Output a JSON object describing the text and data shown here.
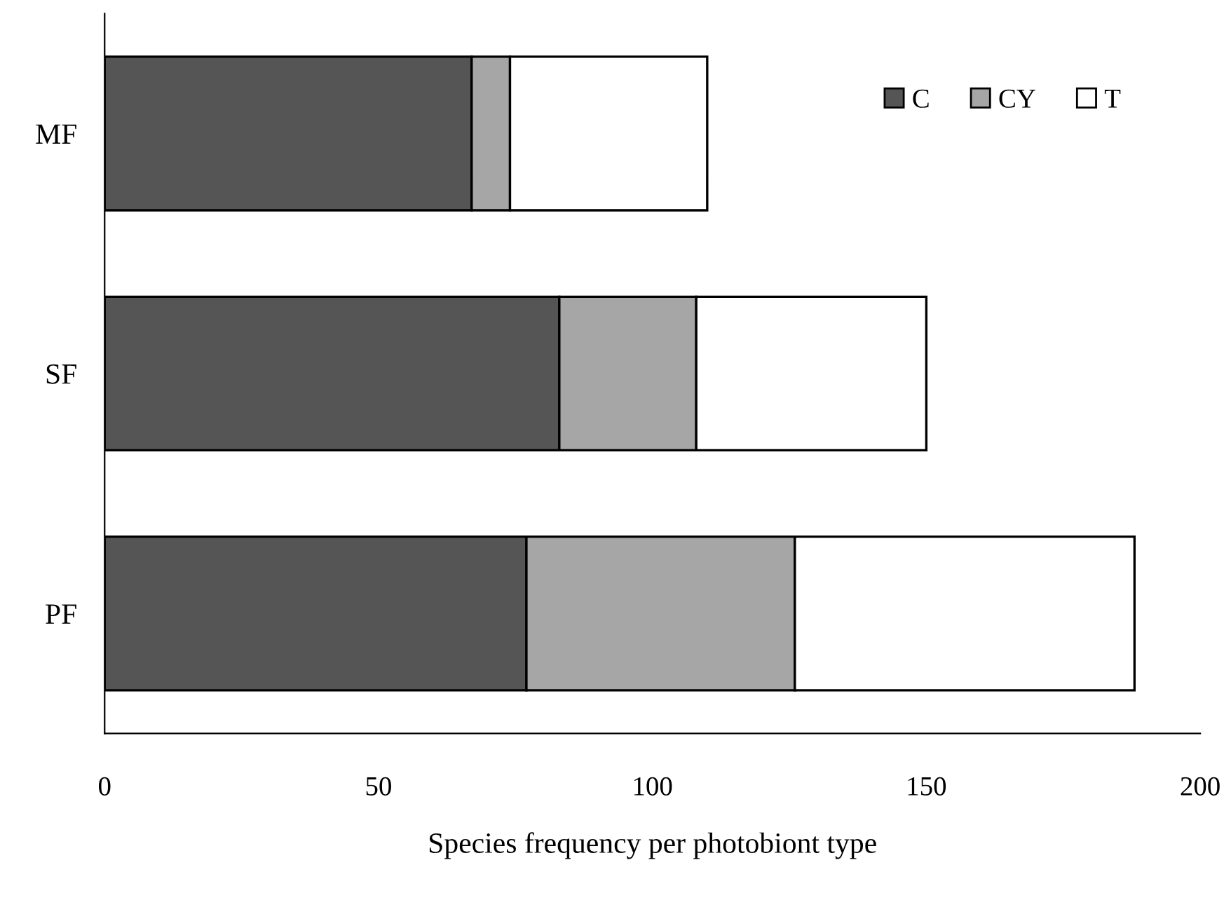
{
  "chart_data": {
    "type": "bar",
    "orientation": "horizontal",
    "stacked": true,
    "xlabel": "Species frequency per photobiont type",
    "categories": [
      "MF",
      "SF",
      "PF"
    ],
    "series": [
      {
        "name": "C",
        "color": "#555555",
        "values": [
          67,
          83,
          77
        ]
      },
      {
        "name": "CY",
        "color": "#a6a6a6",
        "values": [
          7,
          25,
          49
        ]
      },
      {
        "name": "T",
        "color": "#ffffff",
        "values": [
          36,
          42,
          62
        ]
      }
    ],
    "xlim": [
      0,
      200
    ],
    "xticks": [
      0,
      50,
      100,
      150,
      200
    ],
    "grid": false,
    "legend": "top right"
  }
}
